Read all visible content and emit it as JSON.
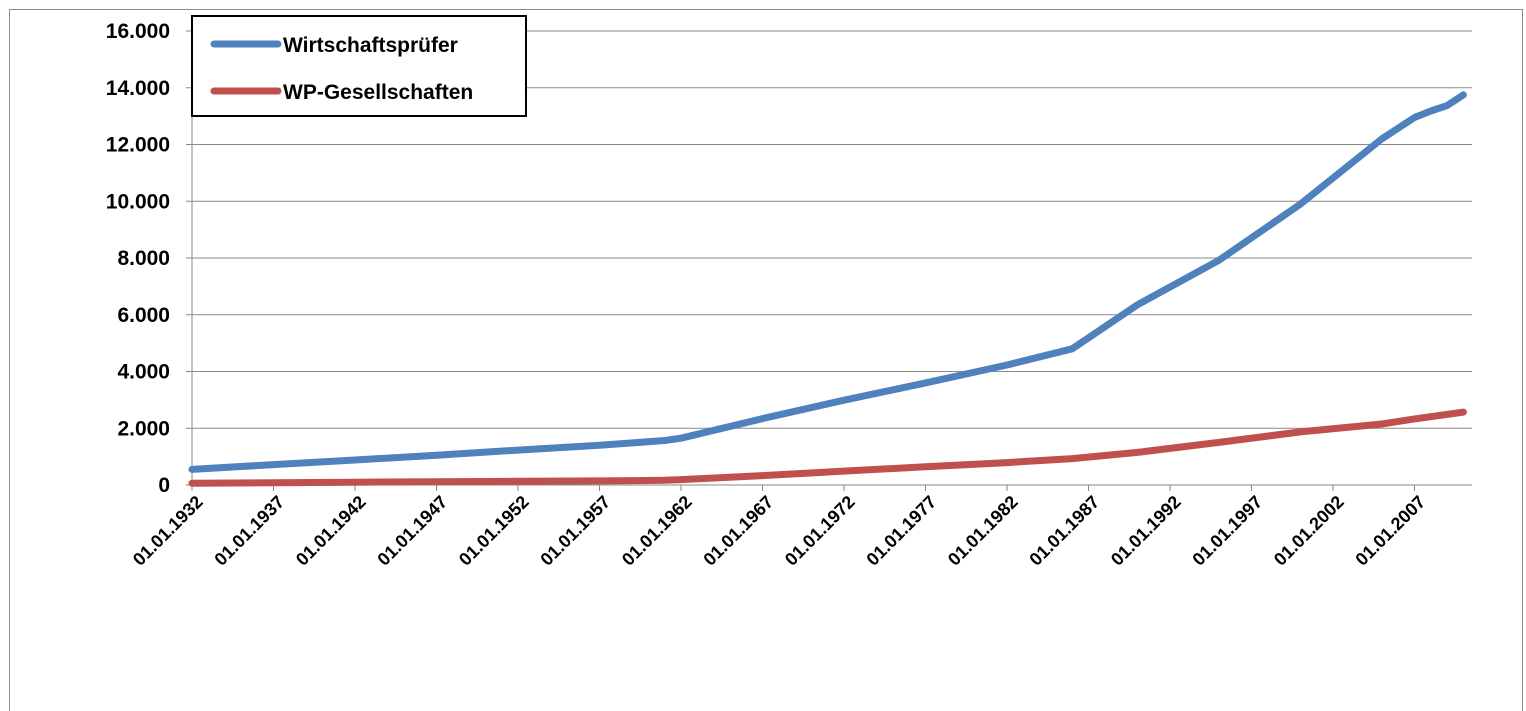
{
  "chart_data": {
    "type": "line",
    "title": "",
    "xlabel": "",
    "ylabel": "",
    "x_start_year": 1932,
    "x_end_year": 2010,
    "x_tick_labels": [
      "01.01.1932",
      "01.01.1937",
      "01.01.1942",
      "01.01.1947",
      "01.01.1952",
      "01.01.1957",
      "01.01.1962",
      "01.01.1967",
      "01.01.1972",
      "01.01.1977",
      "01.01.1982",
      "01.01.1987",
      "01.01.1992",
      "01.01.1997",
      "01.01.2002",
      "01.01.2007"
    ],
    "y_ticks": [
      0,
      2000,
      4000,
      6000,
      8000,
      10000,
      12000,
      14000,
      16000
    ],
    "y_tick_labels": [
      "0",
      "2.000",
      "4.000",
      "6.000",
      "8.000",
      "10.000",
      "12.000",
      "14.000",
      "16.000"
    ],
    "ylim": [
      0,
      16000
    ],
    "grid": true,
    "legend_position": "top-left",
    "series": [
      {
        "name": "Wirtschaftsprüfer",
        "color": "#4f81bd",
        "points": [
          {
            "x": "1932",
            "y": 550
          },
          {
            "x": "1937",
            "y": 720
          },
          {
            "x": "1942",
            "y": 880
          },
          {
            "x": "1947",
            "y": 1050
          },
          {
            "x": "1952",
            "y": 1230
          },
          {
            "x": "1957",
            "y": 1400
          },
          {
            "x": "1961",
            "y": 1570
          },
          {
            "x": "1962",
            "y": 1650
          },
          {
            "x": "1967",
            "y": 2340
          },
          {
            "x": "1972",
            "y": 2990
          },
          {
            "x": "1977",
            "y": 3600
          },
          {
            "x": "1982",
            "y": 4230
          },
          {
            "x": "1986",
            "y": 4800
          },
          {
            "x": "1990",
            "y": 6350
          },
          {
            "x": "1995",
            "y": 7920
          },
          {
            "x": "2000",
            "y": 9900
          },
          {
            "x": "2005",
            "y": 12200
          },
          {
            "x": "2007",
            "y": 12950
          },
          {
            "x": "2008",
            "y": 13180
          },
          {
            "x": "2009",
            "y": 13370
          },
          {
            "x": "2010",
            "y": 13750
          }
        ]
      },
      {
        "name": "WP-Gesellschaften",
        "color": "#c0504d",
        "points": [
          {
            "x": "1932",
            "y": 60
          },
          {
            "x": "1937",
            "y": 80
          },
          {
            "x": "1942",
            "y": 100
          },
          {
            "x": "1947",
            "y": 115
          },
          {
            "x": "1952",
            "y": 130
          },
          {
            "x": "1957",
            "y": 145
          },
          {
            "x": "1961",
            "y": 165
          },
          {
            "x": "1962",
            "y": 190
          },
          {
            "x": "1967",
            "y": 330
          },
          {
            "x": "1972",
            "y": 490
          },
          {
            "x": "1977",
            "y": 640
          },
          {
            "x": "1982",
            "y": 790
          },
          {
            "x": "1986",
            "y": 930
          },
          {
            "x": "1990",
            "y": 1150
          },
          {
            "x": "1995",
            "y": 1500
          },
          {
            "x": "2000",
            "y": 1870
          },
          {
            "x": "2005",
            "y": 2150
          },
          {
            "x": "2007",
            "y": 2330
          },
          {
            "x": "2010",
            "y": 2570
          }
        ]
      }
    ]
  }
}
